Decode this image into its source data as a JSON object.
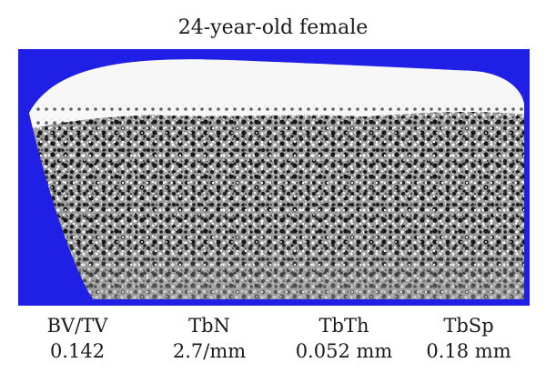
{
  "title": "24-year-old female",
  "metrics": [
    {
      "label": "BV/TV",
      "value": "0.142"
    },
    {
      "label": "TbN",
      "value": "2.7/mm"
    },
    {
      "label": "TbTh",
      "value": "0.052 mm"
    },
    {
      "label": "TbSp",
      "value": "0.18 mm"
    }
  ],
  "colors": {
    "background_field": "#1f1fe6",
    "bone_mass": "#a6a6a6",
    "cortical_rim": "#ffffff",
    "trabecular_dark": "#1a1a1a",
    "trabecular_light": "#ffffff"
  }
}
